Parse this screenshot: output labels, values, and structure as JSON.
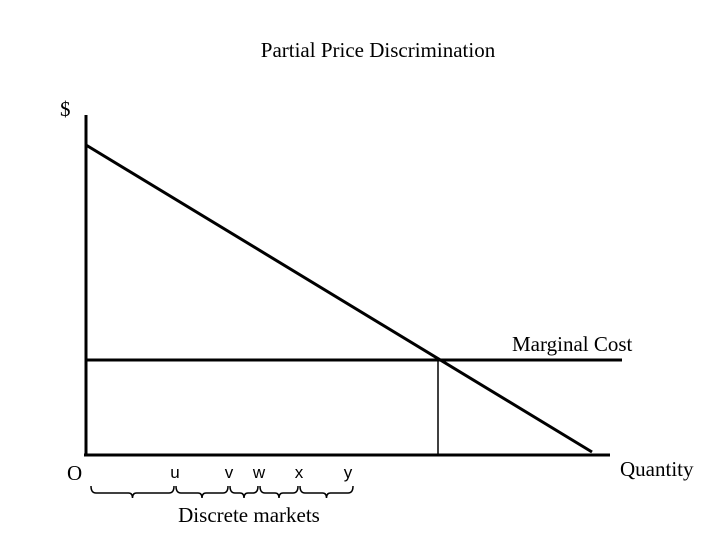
{
  "header": {
    "title": "Partial Price Discrimination"
  },
  "axes": {
    "y_label": "$",
    "x_label": "Quantity",
    "origin_label": "O"
  },
  "curve_label": "Marginal Cost",
  "markets": [
    "u",
    "v",
    "w",
    "x",
    "y"
  ],
  "markets_label": "Discrete markets"
}
